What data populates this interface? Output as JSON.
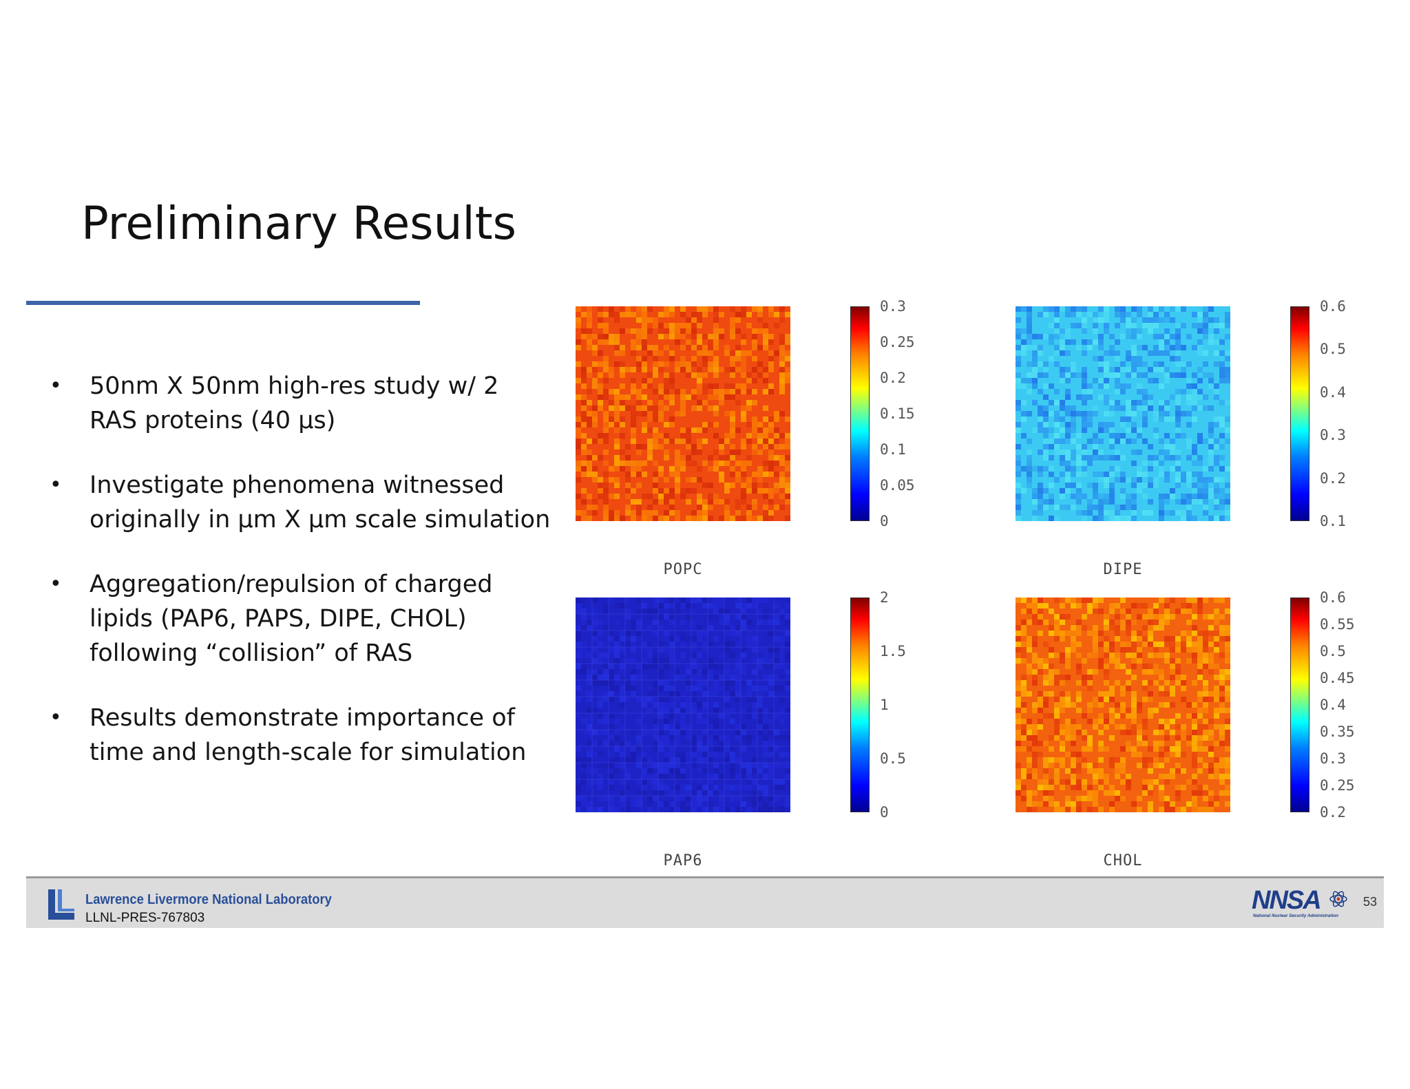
{
  "slide": {
    "title": "Preliminary Results",
    "bullets": [
      "50nm X 50nm high-res study w/ 2 RAS proteins (40 μs)",
      "Investigate phenomena witnessed originally in μm X μm scale simulation",
      "Aggregation/repulsion of charged lipids (PAP6, PAPS, DIPE, CHOL) following “collision” of RAS",
      "Results demonstrate importance of time and length-scale for simulation"
    ]
  },
  "figure": {
    "panels": [
      {
        "label": "POPC",
        "colorbar_ticks": [
          "0.3",
          "0.25",
          "0.2",
          "0.15",
          "0.1",
          "0.05",
          "0"
        ],
        "fill": "#ef4a10",
        "speckle": [
          "#ff8a00",
          "#d42a08",
          "#ffb000"
        ]
      },
      {
        "label": "DIPE",
        "colorbar_ticks": [
          "0.6",
          "0.5",
          "0.4",
          "0.3",
          "0.2",
          "0.1"
        ],
        "fill": "#3ccaf2",
        "speckle": [
          "#2a8ef0",
          "#56e4f4",
          "#1e6fe8"
        ]
      },
      {
        "label": "PAP6",
        "colorbar_ticks": [
          "2",
          "1.5",
          "1",
          "0.5",
          "0"
        ],
        "fill": "#1d22c4",
        "speckle": [
          "#2228d6",
          "#1a1cae",
          "#2430e0"
        ]
      },
      {
        "label": "CHOL",
        "colorbar_ticks": [
          "0.6",
          "0.55",
          "0.5",
          "0.45",
          "0.4",
          "0.35",
          "0.3",
          "0.25",
          "0.2"
        ],
        "fill": "#f3620e",
        "speckle": [
          "#ffa400",
          "#e0300a",
          "#ffcc00"
        ]
      }
    ]
  },
  "footer": {
    "lab_name": "Lawrence Livermore National Laboratory",
    "doc_code": "LLNL-PRES-767803",
    "agency_logo_text": "NNSA",
    "agency_full_name": "National Nuclear Security Administration",
    "page_number": "53",
    "lab_logo_color": "#2a4f9a"
  }
}
